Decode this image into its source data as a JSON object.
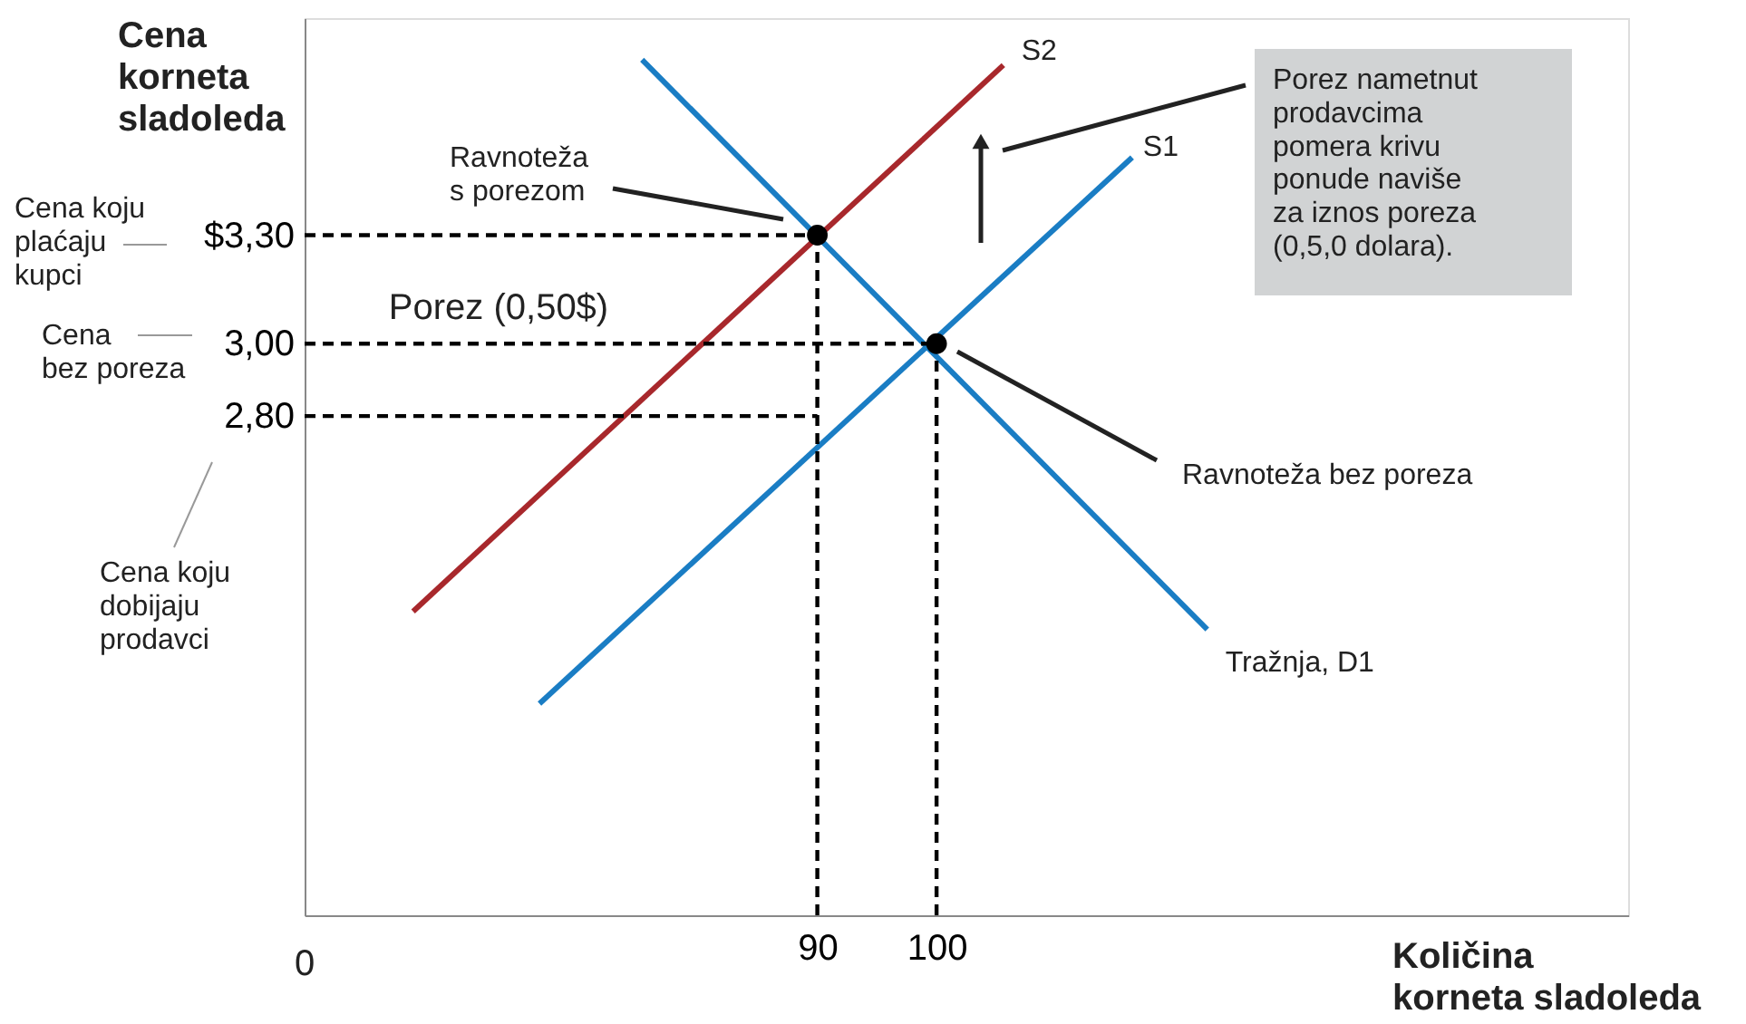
{
  "chart_data": {
    "type": "line",
    "xlabel": "Količina\nkorneta sladoleda",
    "ylabel": "Cena\nkorneta\nsladoleda",
    "xlim": [
      47,
      158
    ],
    "ylim": [
      1.42,
      3.9
    ],
    "xticks": [
      90,
      100
    ],
    "yticks": [
      {
        "value": 3.3,
        "label": "$3,30"
      },
      {
        "value": 3.0,
        "label": "3,00"
      },
      {
        "value": 2.8,
        "label": "2,80"
      }
    ],
    "grid": false,
    "series": [
      {
        "name": "S2",
        "color": "#a8282c",
        "x": [
          56.1,
          105.6
        ],
        "values": [
          2.26,
          3.77
        ]
      },
      {
        "name": "S1",
        "color": "#1a7dc4",
        "x": [
          66.7,
          116.4
        ],
        "values": [
          2.005,
          3.515
        ]
      },
      {
        "name": "Tražnja, D1",
        "color": "#1a7dc4",
        "x": [
          75.3,
          122.7
        ],
        "values": [
          3.785,
          2.21
        ]
      },
      {
        "color": "#000000",
        "line_style": "dashed",
        "x": [
          47,
          90
        ],
        "values": [
          3.3,
          3.3
        ]
      },
      {
        "color": "#000000",
        "line_style": "dashed",
        "x": [
          47,
          100
        ],
        "values": [
          3.0,
          3.0
        ]
      },
      {
        "color": "#000000",
        "line_style": "dashed",
        "x": [
          47,
          90
        ],
        "values": [
          2.8,
          2.8
        ]
      },
      {
        "color": "#000000",
        "line_style": "dashed",
        "x": [
          90,
          90
        ],
        "values": [
          1.42,
          3.3
        ]
      },
      {
        "color": "#000000",
        "line_style": "dashed",
        "x": [
          100,
          100
        ],
        "values": [
          1.42,
          3.0
        ]
      },
      {
        "type": "scatter",
        "marker": "circle",
        "color": "#000000",
        "x": [
          90,
          100
        ],
        "values": [
          3.3,
          3.0
        ]
      }
    ],
    "annotations": [
      "Porez (0,50$)",
      "Porez nametnut\nprodavcima\npomera krivu\nponude naviše\nza iznos poreza\n(0,5,0 dolara).",
      "Cena koju\nplaćaju\nkupci",
      "Cena\nbez poreza",
      "Cena koju\ndobijaju\nprodavci",
      "0",
      "Ravnoteža\ns porezom",
      "Ravnoteža bez poreza"
    ]
  }
}
